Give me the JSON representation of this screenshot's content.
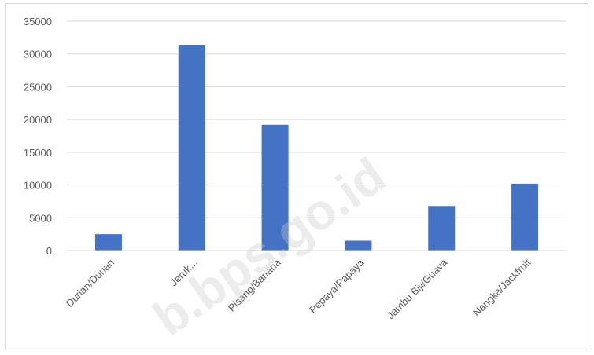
{
  "chart_data": {
    "type": "bar",
    "categories": [
      "Durian/Durian",
      "Jeruk...",
      "Pisang/Banana",
      "Pepaya/Papaya",
      "Jambu Biji/Guava",
      "Nangka/Jackfruit"
    ],
    "values": [
      2500,
      31400,
      19200,
      1500,
      6800,
      10200
    ],
    "ylim": [
      0,
      35000
    ],
    "yticks": [
      0,
      5000,
      10000,
      15000,
      20000,
      25000,
      30000,
      35000
    ],
    "grid": true,
    "bar_color": "#4472c4",
    "legend": "none"
  },
  "watermark": {
    "text": "b.bps.go.id"
  }
}
